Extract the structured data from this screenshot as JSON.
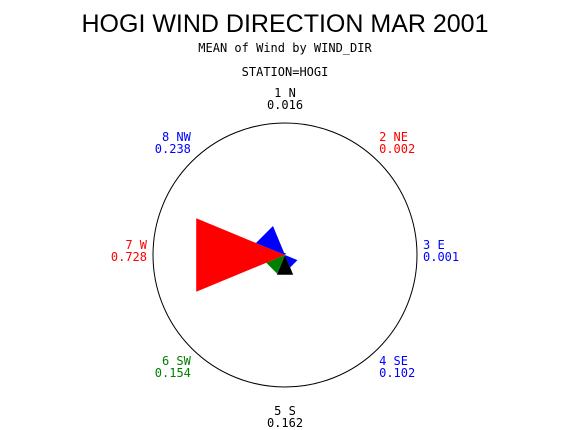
{
  "chart_data": {
    "type": "wind-rose",
    "title": "HOGI WIND DIRECTION MAR 2001",
    "subtitle": "MEAN of Wind by WIND_DIR",
    "station_label": "STATION=HOGI",
    "max_radius_value": 1.0,
    "sectors": [
      {
        "label": "1 N",
        "value": 0.016,
        "value_text": "0.016",
        "angle_deg": 0,
        "color": "#000000"
      },
      {
        "label": "2 NE",
        "value": 0.002,
        "value_text": "0.002",
        "angle_deg": 45,
        "color": "#ff0000"
      },
      {
        "label": "3 E",
        "value": 0.001,
        "value_text": "0.001",
        "angle_deg": 90,
        "color": "#0000ff"
      },
      {
        "label": "4 SE",
        "value": 0.102,
        "value_text": "0.102",
        "angle_deg": 135,
        "color": "#0000ff"
      },
      {
        "label": "5 S",
        "value": 0.162,
        "value_text": "0.162",
        "angle_deg": 180,
        "color": "#000000"
      },
      {
        "label": "6 SW",
        "value": 0.154,
        "value_text": "0.154",
        "angle_deg": 225,
        "color": "#008000"
      },
      {
        "label": "7 W",
        "value": 0.728,
        "value_text": "0.728",
        "angle_deg": 270,
        "color": "#ff0000"
      },
      {
        "label": "8 NW",
        "value": 0.238,
        "value_text": "0.238",
        "angle_deg": 315,
        "color": "#0000ff"
      }
    ]
  }
}
